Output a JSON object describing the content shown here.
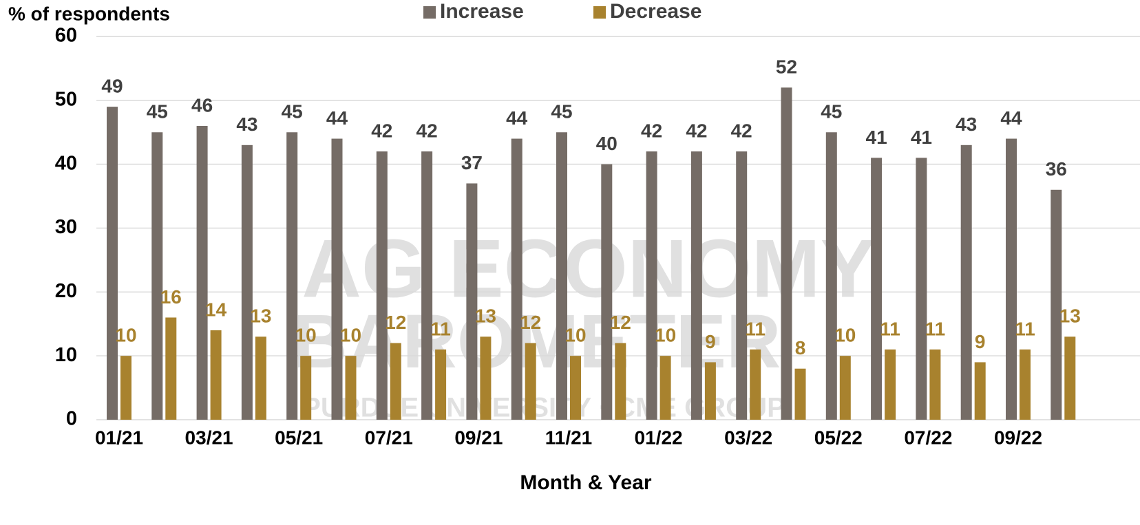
{
  "chart_data": {
    "type": "grouped_bar",
    "y_axis_title": "% of respondents",
    "x_axis_title": "Month & Year",
    "watermark": [
      "AG ECONOMY",
      "BAROMETER",
      "PURDUE UNIVERSITY · CME GROUP"
    ],
    "categories": [
      "01/21",
      null,
      "03/21",
      null,
      "05/21",
      null,
      "07/21",
      null,
      "09/21",
      null,
      "11/21",
      null,
      "01/22",
      null,
      "03/22",
      null,
      "05/22",
      null,
      "07/22",
      null,
      "09/22",
      null
    ],
    "series": [
      {
        "name": "Increase",
        "color": "#756c66",
        "label_color": "#404040",
        "values": [
          49,
          45,
          46,
          43,
          45,
          44,
          42,
          42,
          37,
          44,
          45,
          40,
          42,
          42,
          42,
          52,
          45,
          41,
          41,
          43,
          44,
          36
        ]
      },
      {
        "name": "Decrease",
        "color": "#a8822e",
        "label_color": "#a8822e",
        "values": [
          10,
          16,
          14,
          13,
          10,
          10,
          12,
          11,
          13,
          12,
          10,
          12,
          10,
          9,
          11,
          8,
          10,
          11,
          11,
          9,
          11,
          13
        ]
      }
    ],
    "ylim": [
      0,
      60
    ],
    "yticks": [
      0,
      10,
      20,
      30,
      40,
      50,
      60
    ],
    "grid": true,
    "legend": "top"
  }
}
